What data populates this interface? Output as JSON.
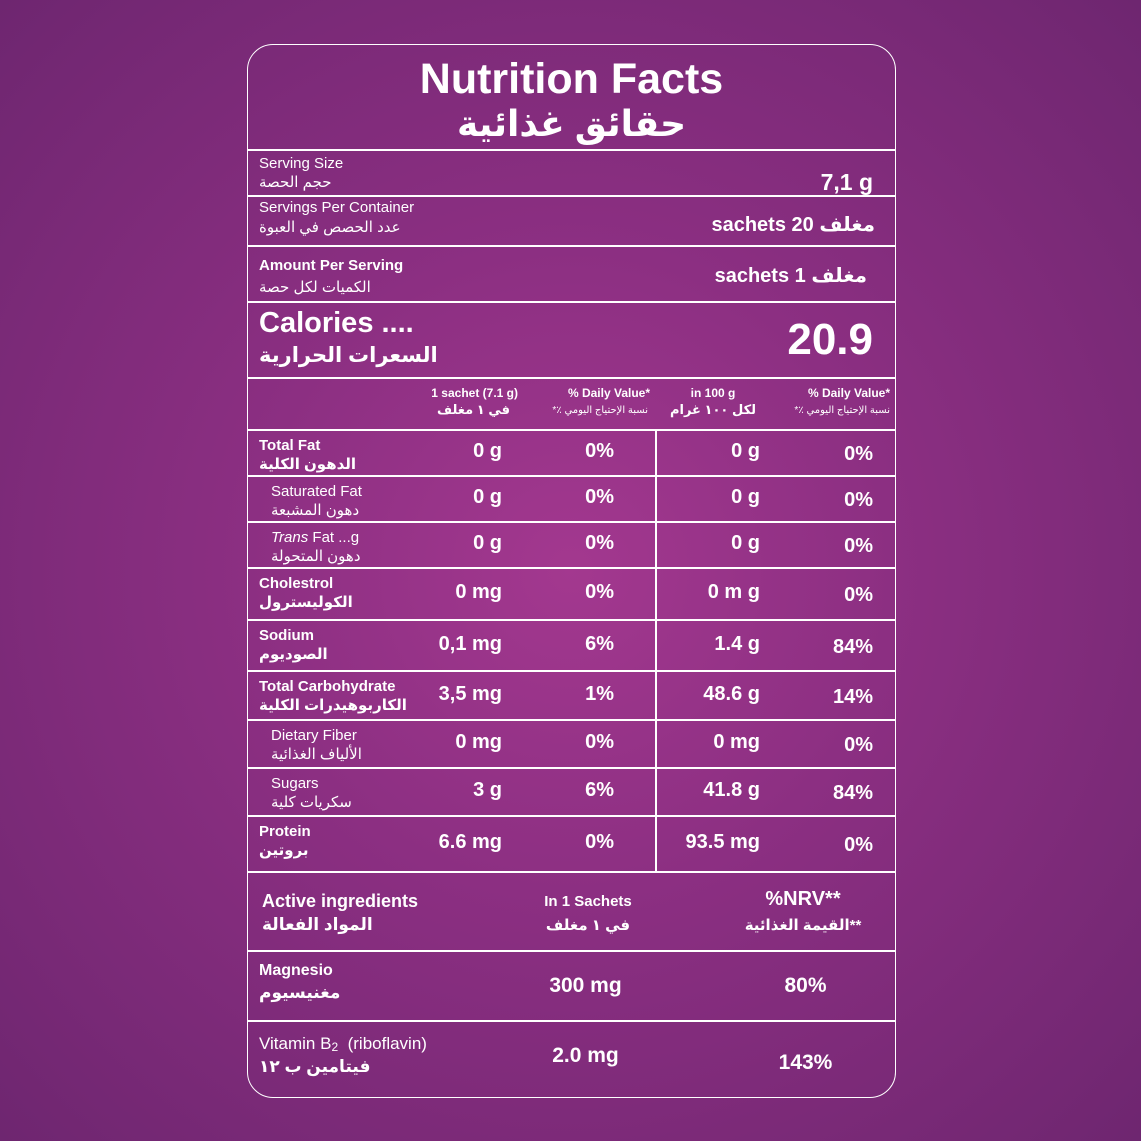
{
  "title_en": "Nutrition Facts",
  "title_ar": "حقائق غذائية",
  "serving_size": {
    "label_en": "Serving Size",
    "label_ar": "حجم الحصة",
    "value": "7,1 g"
  },
  "servings_per_container": {
    "label_en": "Servings Per Container",
    "label_ar": "عدد الحصص في العبوة",
    "value": "مغلف 20 sachets"
  },
  "amount_per_serving": {
    "label_en": "Amount Per Serving",
    "label_ar": "الكميات لكل حصة",
    "value": "مغلف 1 sachets"
  },
  "calories": {
    "label_en": "Calories ....",
    "label_ar": "السعرات الحرارية",
    "value": "20.9"
  },
  "col_headers": {
    "per_sachet_en": "1 sachet (7.1 g)",
    "per_sachet_ar": "في ١ مغلف",
    "dv1_en": "% Daily Value*",
    "dv1_ar": "نسبة الإحتياج اليومي ٪*",
    "per100_en": "in 100 g",
    "per100_ar": "لكل ١٠٠ غرام",
    "dv2_en": "% Daily Value*",
    "dv2_ar": "نسبة الإحتياج اليومي ٪*"
  },
  "nutrients": [
    {
      "en": "Total Fat",
      "ar": "الدهون الكلية",
      "sachet": "0 g",
      "dv1": "0%",
      "per100": "0 g",
      "dv2": "0%"
    },
    {
      "en": "Saturated Fat",
      "ar": "دهون المشبعة",
      "sachet": "0 g",
      "dv1": "0%",
      "per100": "0 g",
      "dv2": "0%"
    },
    {
      "en_italic": "Trans",
      "en": "Fat ...g",
      "ar": "دهون المتحولة",
      "sachet": "0 g",
      "dv1": "0%",
      "per100": "0 g",
      "dv2": "0%"
    },
    {
      "en": "Cholestrol",
      "ar": "الكوليسترول",
      "sachet": "0 mg",
      "dv1": "0%",
      "per100": "0 m g",
      "dv2": "0%"
    },
    {
      "en": "Sodium",
      "ar": "الصوديوم",
      "sachet": "0,1 mg",
      "dv1": "6%",
      "per100": "1.4 g",
      "dv2": "84%"
    },
    {
      "en": "Total Carbohydrate",
      "ar": "الكاربوهيدرات الكلية",
      "sachet": "3,5 mg",
      "dv1": "1%",
      "per100": "48.6 g",
      "dv2": "14%"
    },
    {
      "en": "Dietary Fiber",
      "ar": "الألياف الغذائية",
      "sachet": "0 mg",
      "dv1": "0%",
      "per100": "0 mg",
      "dv2": "0%"
    },
    {
      "en": "Sugars",
      "ar": "سكريات كلية",
      "sachet": "3 g",
      "dv1": "6%",
      "per100": "41.8 g",
      "dv2": "84%"
    },
    {
      "en": "Protein",
      "ar": "بروتين",
      "sachet": "6.6 mg",
      "dv1": "0%",
      "per100": "93.5 mg",
      "dv2": "0%"
    }
  ],
  "active": {
    "header_en": "Active ingredients",
    "header_ar": "المواد الفعالة",
    "col1_en": "In 1 Sachets",
    "col1_ar": "في ١ مغلف",
    "col2_en": "%NRV**",
    "col2_ar": "**القيمة الغذائية",
    "rows": [
      {
        "en": "Magnesio",
        "ar": "مغنيسيوم",
        "amount": "300 mg",
        "nrv": "80%"
      },
      {
        "en": "Vitamin B",
        "en_sub": "2",
        "en_tail": "(riboflavin)",
        "ar": "فيتامين ب ١٢",
        "amount": "2.0 mg",
        "nrv": "143%"
      }
    ]
  }
}
